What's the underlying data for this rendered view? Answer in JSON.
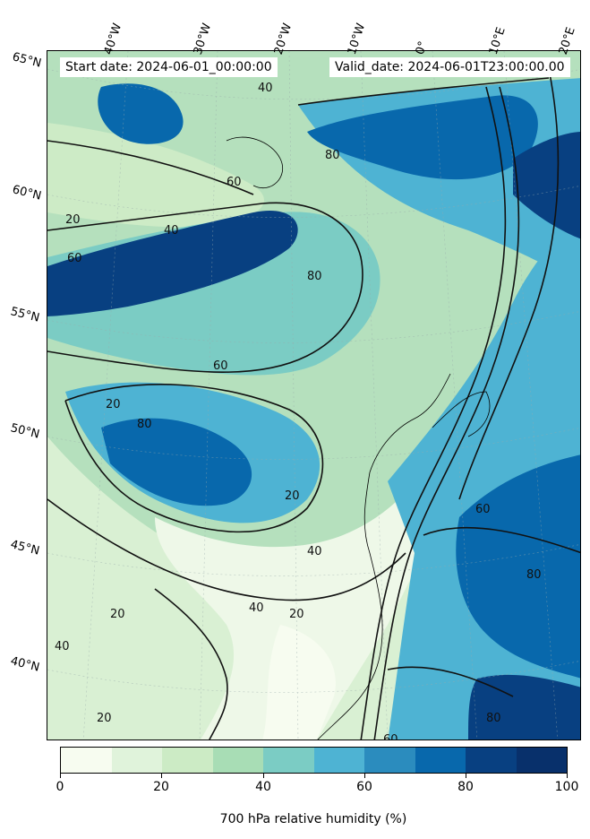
{
  "header": {
    "start_date": "Start date: 2024-06-01_00:00:00",
    "valid_date": "Valid_date: 2024-06-01T23:00:00.00"
  },
  "map": {
    "lon_labels": [
      "40°W",
      "30°W",
      "20°W",
      "10°W",
      "0°",
      "10°E",
      "20°E"
    ],
    "lat_labels": [
      "65°N",
      "60°N",
      "55°N",
      "50°N",
      "45°N",
      "40°N"
    ],
    "contour_labels": [
      "20",
      "40",
      "60",
      "80"
    ]
  },
  "colorbar": {
    "title": "700 hPa relative humidity (%)",
    "ticks": [
      "0",
      "20",
      "40",
      "60",
      "80",
      "100"
    ],
    "colors": [
      "#f7fcf0",
      "#e0f3db",
      "#ccebc5",
      "#a8ddb5",
      "#7bccc4",
      "#4eb3d3",
      "#2b8cbe",
      "#0868ac",
      "#084081",
      "#08306b"
    ]
  },
  "colors": {
    "rh_0_10": "#f7fcf0",
    "rh_10_20": "#e0f3db",
    "rh_20_30": "#ccebc5",
    "rh_30_40": "#a8ddb5",
    "rh_40_50": "#7bccc4",
    "rh_50_60": "#4eb3d3",
    "rh_60_70": "#2b8cbe",
    "rh_70_80": "#0868ac",
    "rh_80_90": "#084081",
    "rh_90_100": "#08306b"
  }
}
